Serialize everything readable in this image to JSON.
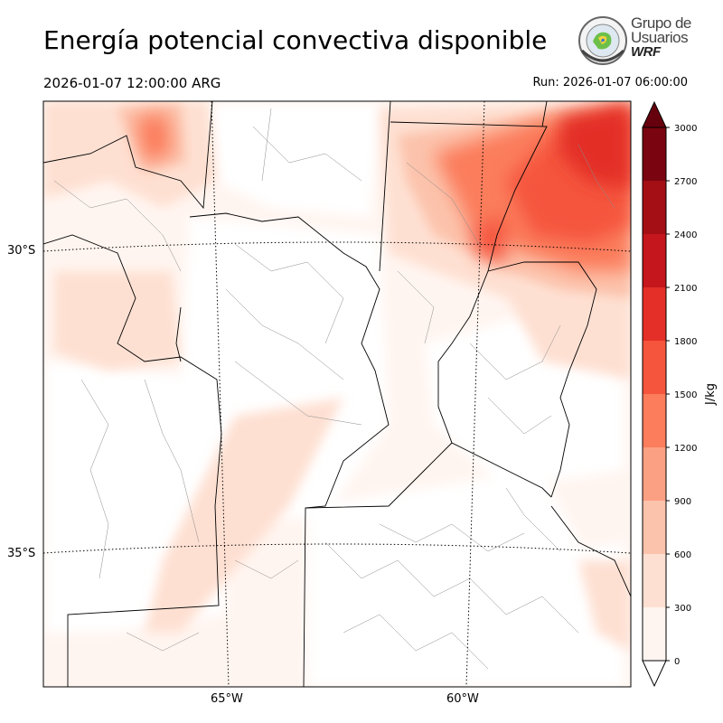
{
  "header": {
    "title": "Energía potencial convectiva disponible",
    "valid_time": "2026-01-07 12:00:00 ARG",
    "run_time": "Run: 2026-01-07 06:00:00"
  },
  "logo": {
    "line1": "Grupo de",
    "line2": "Usuarios",
    "line3": "WRF"
  },
  "axes": {
    "lat_labels": [
      "30°S",
      "35°S"
    ],
    "lon_labels": [
      "65°W",
      "60°W"
    ]
  },
  "colorbar": {
    "label": "J/kg",
    "ticks": [
      "0",
      "300",
      "600",
      "900",
      "1200",
      "1500",
      "1800",
      "2100",
      "2400",
      "2700",
      "3000"
    ],
    "colors": [
      "#fff5f0",
      "#fee0d2",
      "#fcc3ac",
      "#fca083",
      "#fb7d5c",
      "#f5553c",
      "#e32f27",
      "#c4161c",
      "#a30f15",
      "#7a0510"
    ]
  }
}
